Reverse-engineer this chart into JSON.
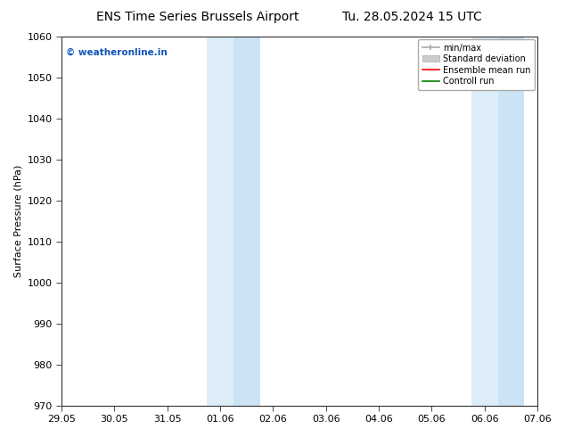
{
  "title_left": "ENS Time Series Brussels Airport",
  "title_right": "Tu. 28.05.2024 15 UTC",
  "ylabel": "Surface Pressure (hPa)",
  "ylim": [
    970,
    1060
  ],
  "yticks": [
    970,
    980,
    990,
    1000,
    1010,
    1020,
    1030,
    1040,
    1050,
    1060
  ],
  "xtick_labels": [
    "29.05",
    "30.05",
    "31.05",
    "01.06",
    "02.06",
    "03.06",
    "04.06",
    "05.06",
    "06.06",
    "07.06"
  ],
  "xtick_positions": [
    0,
    1,
    2,
    3,
    4,
    5,
    6,
    7,
    8,
    9
  ],
  "xlim": [
    0,
    9
  ],
  "shaded_regions": [
    {
      "xmin": 2.75,
      "xmax": 3.25,
      "color": "#ddeef8"
    },
    {
      "xmin": 3.25,
      "xmax": 3.75,
      "color": "#cce3f5"
    },
    {
      "xmin": 7.75,
      "xmax": 8.25,
      "color": "#ddeef8"
    },
    {
      "xmin": 8.25,
      "xmax": 8.75,
      "color": "#cce3f5"
    }
  ],
  "watermark_text": "© weatheronline.in",
  "watermark_color": "#1155bb",
  "legend_labels": [
    "min/max",
    "Standard deviation",
    "Ensemble mean run",
    "Controll run"
  ],
  "legend_colors_line": [
    "#999999",
    "#bbbbbb",
    "#ff0000",
    "#008000"
  ],
  "background_color": "#ffffff",
  "title_fontsize": 10,
  "axis_label_fontsize": 8,
  "tick_fontsize": 8,
  "figsize": [
    6.34,
    4.9
  ],
  "dpi": 100
}
